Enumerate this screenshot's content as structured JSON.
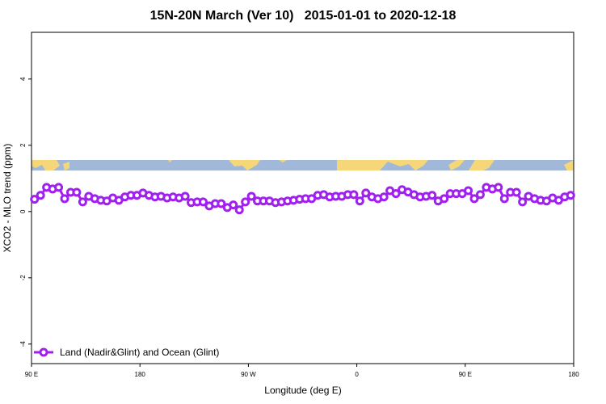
{
  "chart_data": {
    "type": "line",
    "title": "15N-20N March (Ver 10)   2015-01-01 to 2020-12-18",
    "xlabel": "Longitude (deg E)",
    "ylabel": "XCO2 - MLO trend (ppm)",
    "xlim": [
      90,
      540
    ],
    "ylim": [
      -4.59,
      5.41
    ],
    "xticks": [
      {
        "value": 90,
        "label": "90 E"
      },
      180,
      {
        "value": 270,
        "label": "90 W"
      },
      {
        "value": 360,
        "label": "0"
      },
      {
        "value": 450,
        "label": "90 E"
      },
      {
        "value": 540,
        "label": "180"
      }
    ],
    "yticks": [
      -4,
      -2,
      0,
      2,
      4
    ],
    "legend": "bottom-left",
    "x": [
      92.5,
      97.5,
      102.5,
      107.5,
      112.5,
      117.5,
      122.5,
      127.5,
      132.5,
      137.5,
      142.5,
      147.5,
      152.5,
      157.5,
      162.5,
      167.5,
      172.5,
      177.5,
      182.5,
      187.5,
      192.5,
      197.5,
      202.5,
      207.5,
      212.5,
      217.5,
      222.5,
      227.5,
      232.5,
      237.5,
      242.5,
      247.5,
      252.5,
      257.5,
      262.5,
      267.5,
      272.5,
      277.5,
      282.5,
      287.5,
      292.5,
      297.5,
      302.5,
      307.5,
      312.5,
      317.5,
      322.5,
      327.5,
      332.5,
      337.5,
      342.5,
      347.5,
      352.5,
      357.5,
      362.5,
      367.5,
      372.5,
      377.5,
      382.5,
      387.5,
      392.5,
      397.5,
      402.5,
      407.5,
      412.5,
      417.5,
      422.5,
      427.5,
      432.5,
      437.5,
      442.5,
      447.5,
      452.5,
      457.5,
      462.5,
      467.5,
      472.5,
      477.5,
      482.5,
      487.5,
      492.5,
      497.5,
      502.5,
      507.5,
      512.5,
      517.5,
      522.5,
      527.5,
      532.5,
      537.5
    ],
    "series": [
      {
        "name": "Land (Nadir&Glint) and Ocean (Glint)",
        "color": "#a020f0",
        "values": [
          0.37,
          0.49,
          0.73,
          0.68,
          0.73,
          0.39,
          0.58,
          0.58,
          0.29,
          0.46,
          0.39,
          0.34,
          0.32,
          0.41,
          0.34,
          0.44,
          0.49,
          0.49,
          0.56,
          0.49,
          0.44,
          0.46,
          0.41,
          0.44,
          0.41,
          0.46,
          0.27,
          0.29,
          0.29,
          0.17,
          0.24,
          0.24,
          0.12,
          0.2,
          0.05,
          0.29,
          0.46,
          0.32,
          0.32,
          0.32,
          0.27,
          0.29,
          0.32,
          0.34,
          0.37,
          0.39,
          0.39,
          0.49,
          0.51,
          0.44,
          0.46,
          0.46,
          0.51,
          0.51,
          0.32,
          0.56,
          0.44,
          0.39,
          0.44,
          0.63,
          0.54,
          0.66,
          0.59,
          0.51,
          0.44,
          0.46,
          0.49,
          0.32,
          0.39,
          0.54,
          0.54,
          0.54,
          0.63,
          0.39,
          0.51,
          0.73,
          0.68,
          0.73,
          0.39,
          0.58,
          0.58,
          0.29,
          0.46,
          0.39,
          0.34,
          0.32,
          0.41,
          0.34,
          0.44,
          0.49
        ]
      }
    ]
  }
}
